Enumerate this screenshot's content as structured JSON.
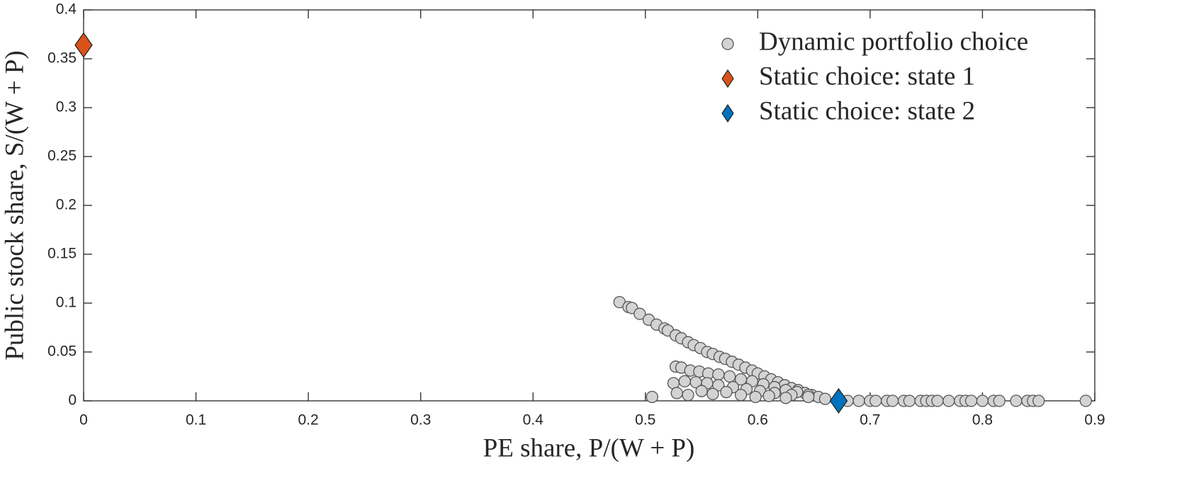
{
  "chart_data": {
    "type": "scatter",
    "xlabel": "PE share, P/(W + P)",
    "ylabel": "Public stock share, S/(W + P)",
    "xlim": [
      0,
      0.9
    ],
    "ylim": [
      0,
      0.4
    ],
    "xticks": [
      0,
      0.1,
      0.2,
      0.3,
      0.4,
      0.5,
      0.6,
      0.7,
      0.8,
      0.9
    ],
    "yticks": [
      0,
      0.05,
      0.1,
      0.15,
      0.2,
      0.25,
      0.3,
      0.35,
      0.4
    ],
    "legend": "top-right",
    "series": [
      {
        "name": "Dynamic portfolio choice",
        "color": "#d3d3d3",
        "marker": "circle",
        "x": [
          0.477,
          0.485,
          0.488,
          0.495,
          0.503,
          0.51,
          0.517,
          0.52,
          0.527,
          0.532,
          0.538,
          0.543,
          0.549,
          0.555,
          0.56,
          0.566,
          0.571,
          0.577,
          0.583,
          0.589,
          0.595,
          0.6,
          0.606,
          0.612,
          0.618,
          0.624,
          0.63,
          0.636,
          0.642,
          0.648,
          0.654,
          0.66,
          0.527,
          0.532,
          0.54,
          0.548,
          0.556,
          0.565,
          0.575,
          0.585,
          0.595,
          0.605,
          0.615,
          0.625,
          0.635,
          0.645,
          0.525,
          0.535,
          0.545,
          0.555,
          0.565,
          0.578,
          0.59,
          0.602,
          0.615,
          0.63,
          0.645,
          0.528,
          0.538,
          0.55,
          0.56,
          0.572,
          0.585,
          0.598,
          0.61,
          0.625,
          0.506,
          0.68,
          0.69,
          0.7,
          0.705,
          0.715,
          0.72,
          0.73,
          0.735,
          0.745,
          0.75,
          0.755,
          0.76,
          0.77,
          0.78,
          0.785,
          0.79,
          0.8,
          0.81,
          0.815,
          0.83,
          0.84,
          0.845,
          0.85,
          0.892
        ],
        "y": [
          0.101,
          0.096,
          0.095,
          0.089,
          0.083,
          0.078,
          0.074,
          0.072,
          0.067,
          0.064,
          0.06,
          0.057,
          0.054,
          0.05,
          0.048,
          0.045,
          0.043,
          0.04,
          0.037,
          0.034,
          0.031,
          0.028,
          0.025,
          0.022,
          0.019,
          0.016,
          0.013,
          0.011,
          0.008,
          0.006,
          0.004,
          0.002,
          0.035,
          0.034,
          0.031,
          0.03,
          0.028,
          0.027,
          0.025,
          0.022,
          0.02,
          0.017,
          0.014,
          0.011,
          0.009,
          0.006,
          0.018,
          0.02,
          0.019,
          0.018,
          0.016,
          0.014,
          0.012,
          0.01,
          0.008,
          0.006,
          0.004,
          0.008,
          0.006,
          0.01,
          0.007,
          0.009,
          0.006,
          0.004,
          0.005,
          0.003,
          0.004,
          0,
          0,
          0,
          0,
          0,
          0,
          0,
          0,
          0,
          0,
          0,
          0,
          0,
          0,
          0,
          0,
          0,
          0,
          0,
          0,
          0,
          0,
          0,
          0
        ]
      },
      {
        "name": "Static choice: state 1",
        "color": "#d95319",
        "marker": "diamond",
        "x": [
          0
        ],
        "y": [
          0.364
        ]
      },
      {
        "name": "Static choice: state 2",
        "color": "#0072bd",
        "marker": "diamond",
        "x": [
          0.672
        ],
        "y": [
          0
        ]
      }
    ]
  }
}
